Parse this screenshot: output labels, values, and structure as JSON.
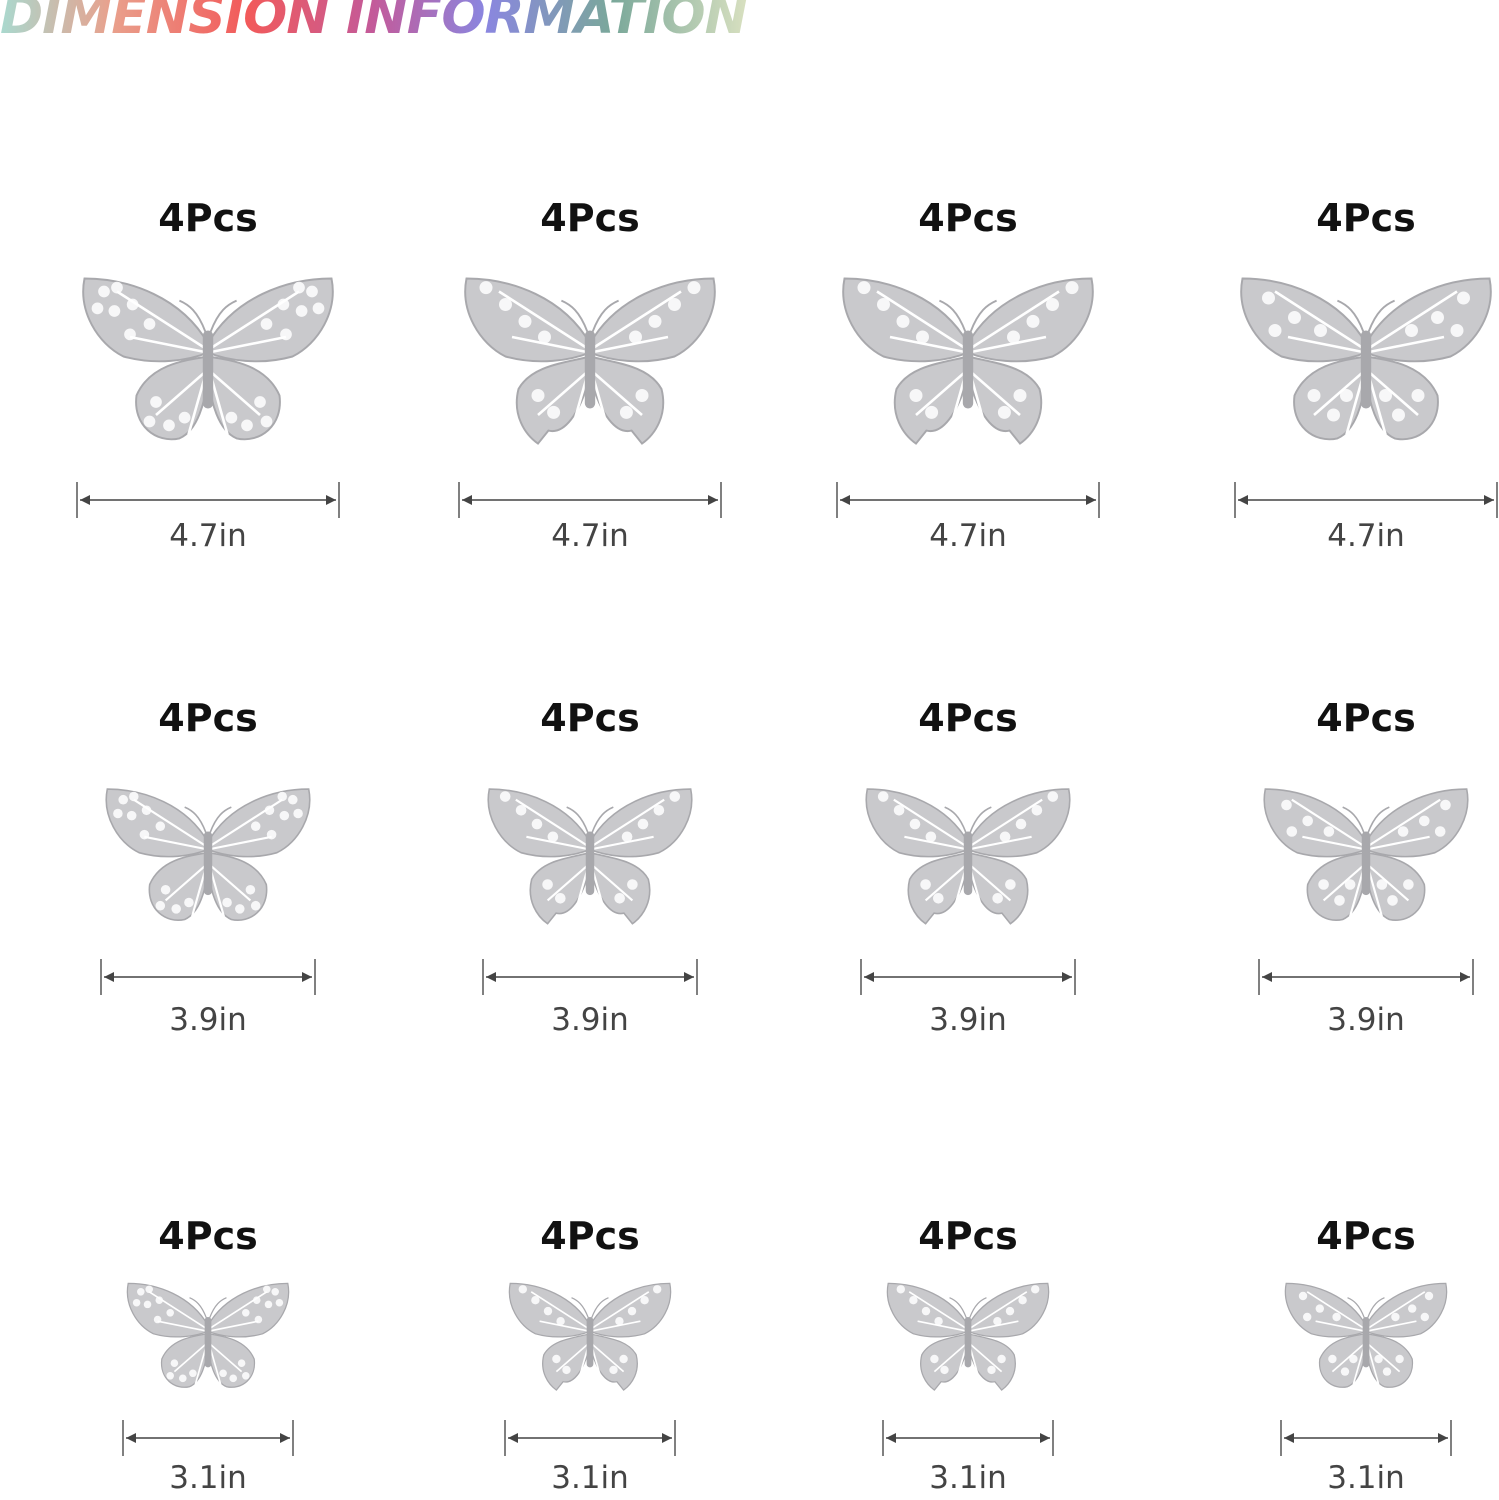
{
  "title": "DIMENSION INFORMATION",
  "colors": {
    "silver": "#c9c9cc",
    "silver_dark": "#a8a8ac",
    "arrow": "#444444"
  },
  "rows": [
    {
      "size": "4.7in",
      "items": [
        {
          "qty": "4Pcs",
          "style": "dotted-butterfly"
        },
        {
          "qty": "4Pcs",
          "style": "lace-butterfly"
        },
        {
          "qty": "4Pcs",
          "style": "swallowtail-butterfly"
        },
        {
          "qty": "4Pcs",
          "style": "monarch-butterfly"
        }
      ]
    },
    {
      "size": "3.9in",
      "items": [
        {
          "qty": "4Pcs",
          "style": "dotted-butterfly"
        },
        {
          "qty": "4Pcs",
          "style": "lace-butterfly"
        },
        {
          "qty": "4Pcs",
          "style": "swallowtail-butterfly"
        },
        {
          "qty": "4Pcs",
          "style": "monarch-butterfly"
        }
      ]
    },
    {
      "size": "3.1in",
      "items": [
        {
          "qty": "4Pcs",
          "style": "dotted-butterfly"
        },
        {
          "qty": "4Pcs",
          "style": "lace-butterfly"
        },
        {
          "qty": "4Pcs",
          "style": "swallowtail-butterfly"
        },
        {
          "qty": "4Pcs",
          "style": "monarch-butterfly"
        }
      ]
    }
  ]
}
